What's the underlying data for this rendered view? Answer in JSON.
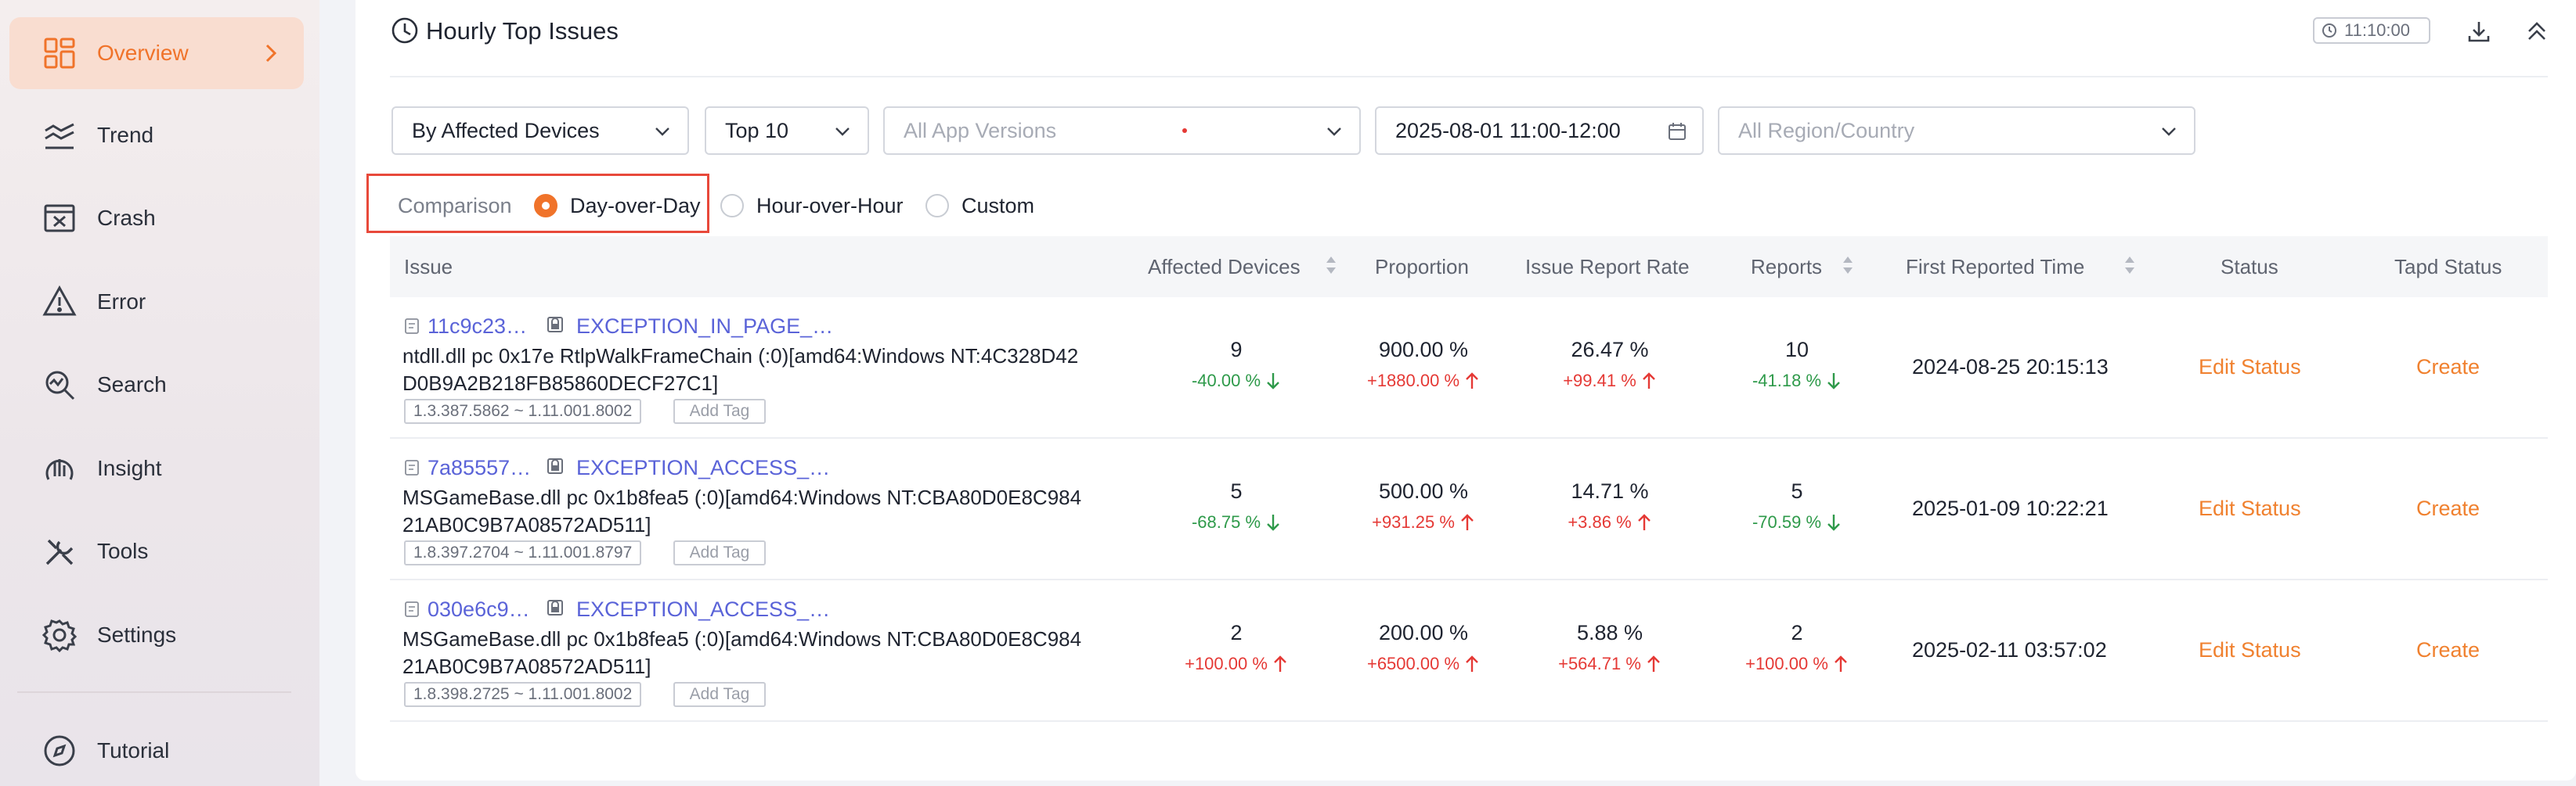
{
  "sidebar": {
    "items": [
      {
        "label": "Overview",
        "icon": "grid-icon",
        "active": true
      },
      {
        "label": "Trend",
        "icon": "trend-icon"
      },
      {
        "label": "Crash",
        "icon": "crash-icon"
      },
      {
        "label": "Error",
        "icon": "warning-icon"
      },
      {
        "label": "Search",
        "icon": "search-icon"
      },
      {
        "label": "Insight",
        "icon": "insight-icon"
      },
      {
        "label": "Tools",
        "icon": "tools-icon"
      },
      {
        "label": "Settings",
        "icon": "gear-icon"
      },
      {
        "label": "Tutorial",
        "icon": "compass-icon"
      }
    ]
  },
  "header": {
    "title": "Hourly Top Issues",
    "time_chip": "11:10:00"
  },
  "filters": {
    "metric": "By Affected Devices",
    "top": "Top 10",
    "app_versions_placeholder": "All App Versions",
    "date_range": "2025-08-01 11:00-12:00",
    "region_placeholder": "All Region/Country"
  },
  "comparison": {
    "label": "Comparison",
    "options": [
      "Day-over-Day",
      "Hour-over-Hour",
      "Custom"
    ],
    "selected": "Day-over-Day"
  },
  "table": {
    "columns": [
      "Issue",
      "Affected Devices",
      "Proportion",
      "Issue Report Rate",
      "Reports",
      "First Reported Time",
      "Status",
      "Tapd Status"
    ],
    "add_tag_label": "Add Tag",
    "rows": [
      {
        "id": "11c9c23…",
        "exception": "EXCEPTION_IN_PAGE_…",
        "desc_line1": "ntdll.dll pc 0x17e RtlpWalkFrameChain (:0)[amd64:Windows NT:4C328D42",
        "desc_line2": "D0B9A2B218FB85860DECF27C1]",
        "versions": "1.3.387.5862 ~ 1.11.001.8002",
        "devices": "9",
        "devices_delta": "-40.00 %",
        "devices_dir": "down",
        "proportion": "900.00 %",
        "proportion_delta": "+1880.00 %",
        "proportion_dir": "up",
        "rate": "26.47 %",
        "rate_delta": "+99.41 %",
        "rate_dir": "up",
        "reports": "10",
        "reports_delta": "-41.18 %",
        "reports_dir": "down",
        "first_reported": "2024-08-25 20:15:13",
        "status": "Edit Status",
        "tapd": "Create"
      },
      {
        "id": "7a85557…",
        "exception": "EXCEPTION_ACCESS_…",
        "desc_line1": "MSGameBase.dll pc 0x1b8fea5 (:0)[amd64:Windows NT:CBA80D0E8C984",
        "desc_line2": "21AB0C9B7A08572AD511]",
        "versions": "1.8.397.2704 ~ 1.11.001.8797",
        "devices": "5",
        "devices_delta": "-68.75 %",
        "devices_dir": "down",
        "proportion": "500.00 %",
        "proportion_delta": "+931.25 %",
        "proportion_dir": "up",
        "rate": "14.71 %",
        "rate_delta": "+3.86 %",
        "rate_dir": "up",
        "reports": "5",
        "reports_delta": "-70.59 %",
        "reports_dir": "down",
        "first_reported": "2025-01-09 10:22:21",
        "status": "Edit Status",
        "tapd": "Create"
      },
      {
        "id": "030e6c9…",
        "exception": "EXCEPTION_ACCESS_…",
        "desc_line1": "MSGameBase.dll pc 0x1b8fea5 (:0)[amd64:Windows NT:CBA80D0E8C984",
        "desc_line2": "21AB0C9B7A08572AD511]",
        "versions": "1.8.398.2725 ~ 1.11.001.8002",
        "devices": "2",
        "devices_delta": "+100.00 %",
        "devices_dir": "up",
        "proportion": "200.00 %",
        "proportion_delta": "+6500.00 %",
        "proportion_dir": "up",
        "rate": "5.88 %",
        "rate_delta": "+564.71 %",
        "rate_dir": "up",
        "reports": "2",
        "reports_delta": "+100.00 %",
        "reports_dir": "up",
        "first_reported": "2025-02-11 03:57:02",
        "status": "Edit Status",
        "tapd": "Create"
      }
    ]
  },
  "colors": {
    "accent": "#f0732a",
    "link": "#5a63d8",
    "up": "#e53935",
    "down": "#2e9a4a"
  }
}
